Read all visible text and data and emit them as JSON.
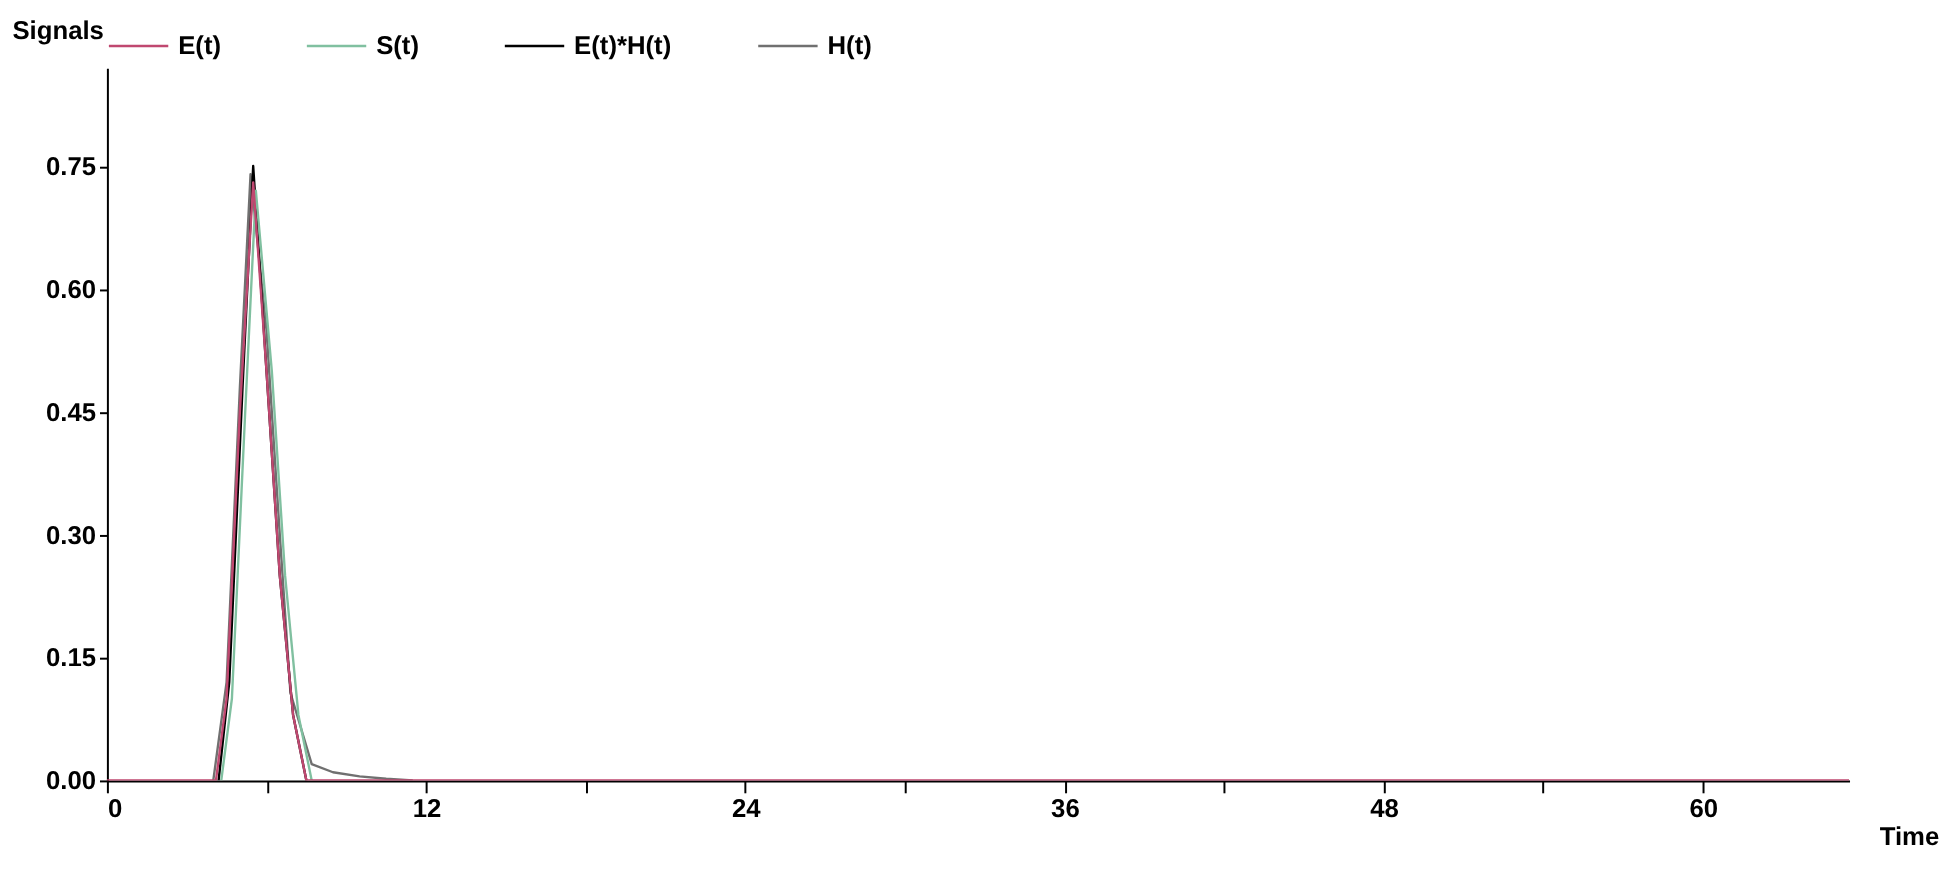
{
  "chart_data": {
    "type": "line",
    "xlabel": "Time",
    "ylabel": "Signals",
    "legend": "top",
    "grid": false,
    "line_style": "solid",
    "marker": "none",
    "xlim": [
      0,
      65.5
    ],
    "ylim": [
      0,
      0.87
    ],
    "xticks": [
      0,
      {
        "value": 6,
        "label": null
      },
      12,
      {
        "value": 18,
        "label": null
      },
      24,
      {
        "value": 30,
        "label": null
      },
      36,
      {
        "value": 42,
        "label": null
      },
      48,
      {
        "value": 54,
        "label": null
      },
      60
    ],
    "yticks": [
      {
        "value": 0,
        "label": "0.00"
      },
      {
        "value": 0.15,
        "label": "0.15"
      },
      {
        "value": 0.3,
        "label": "0.30"
      },
      {
        "value": 0.45,
        "label": "0.45"
      },
      {
        "value": 0.6,
        "label": "0.60"
      },
      {
        "value": 0.75,
        "label": "0.75"
      }
    ],
    "series": [
      {
        "name": "E(t)",
        "color": "#c04870",
        "x": [
          0,
          4.1,
          4.5,
          5.0,
          5.5,
          6.0,
          6.5,
          7.0,
          7.5,
          65.5
        ],
        "values": [
          0,
          0,
          0.1,
          0.45,
          0.73,
          0.5,
          0.25,
          0.08,
          0,
          0
        ]
      },
      {
        "name": "S(t)",
        "color": "#80c0a0",
        "x": [
          4.3,
          4.7,
          5.2,
          5.6,
          6.2,
          6.7,
          7.2,
          7.7
        ],
        "values": [
          0,
          0.1,
          0.45,
          0.72,
          0.5,
          0.25,
          0.08,
          0
        ]
      },
      {
        "name": "E(t)*H(t)",
        "color": "#000000",
        "x": [
          4.2,
          4.6,
          5.1,
          5.5,
          6.0,
          6.5,
          7.0,
          7.5
        ],
        "values": [
          0,
          0.12,
          0.48,
          0.75,
          0.5,
          0.25,
          0.08,
          0
        ]
      },
      {
        "name": "H(t)",
        "color": "#707070",
        "x": [
          4.0,
          4.5,
          5.0,
          5.4,
          6.0,
          6.5,
          6.9,
          7.7,
          8.5,
          9.5,
          10.5,
          11.5
        ],
        "values": [
          0,
          0.12,
          0.48,
          0.74,
          0.55,
          0.3,
          0.107,
          0.02,
          0.01,
          0.005,
          0.002,
          0
        ]
      }
    ]
  }
}
